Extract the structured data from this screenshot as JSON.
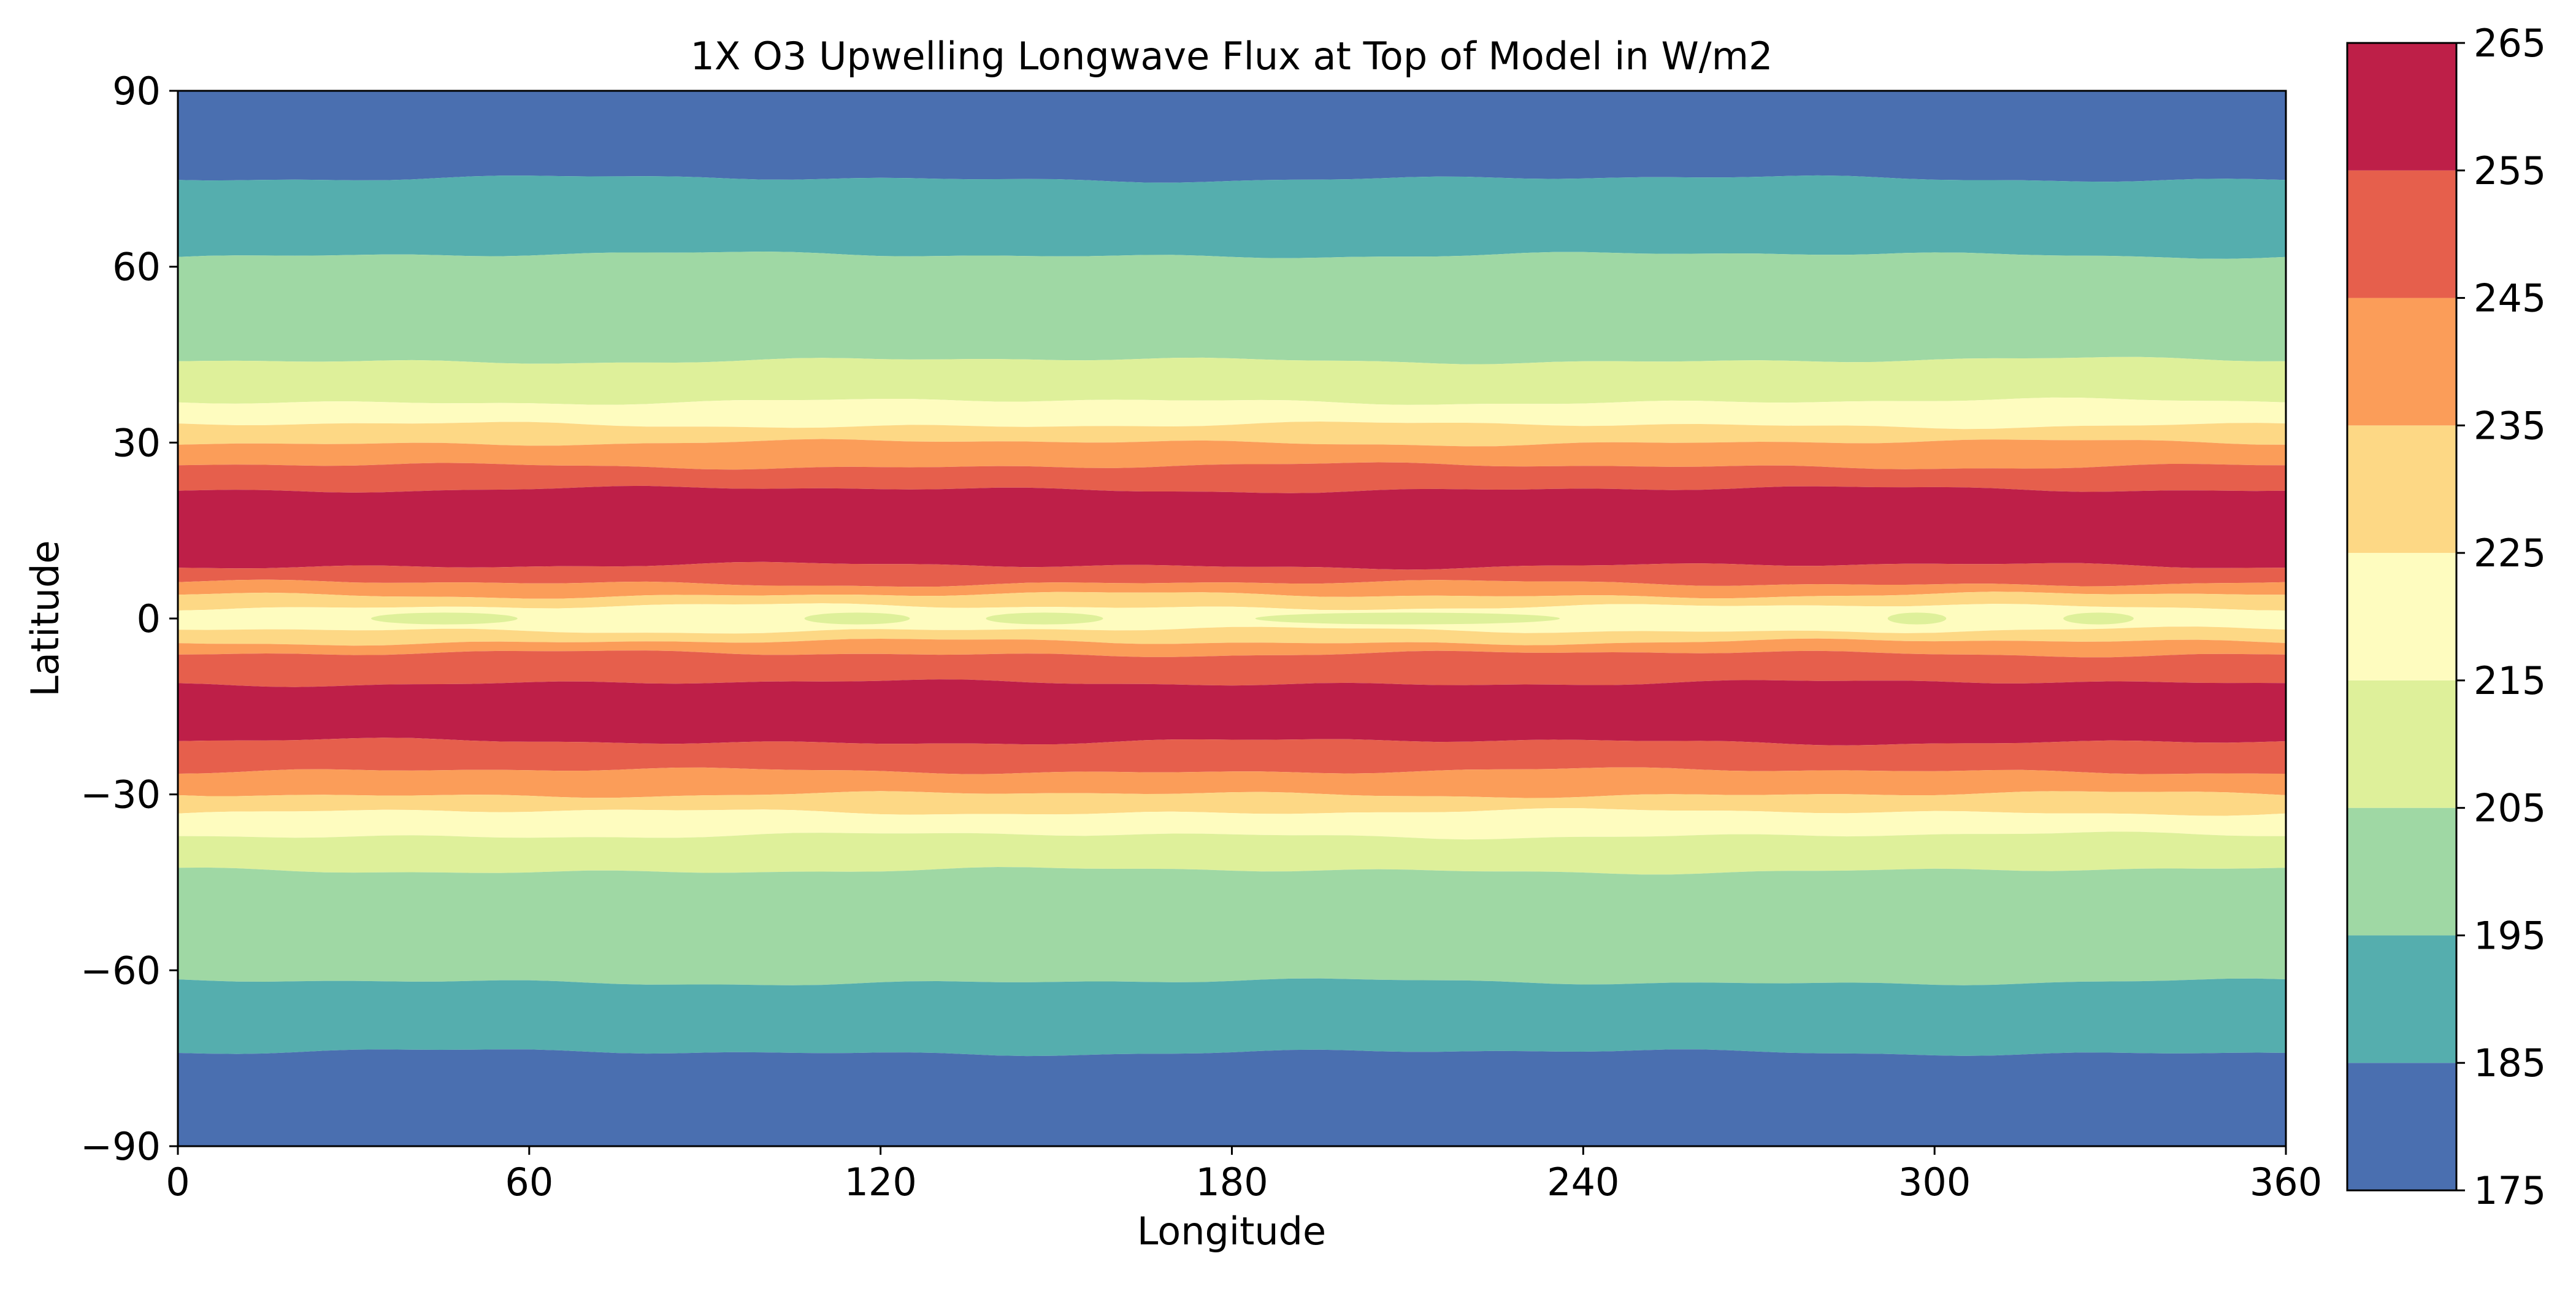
{
  "chart_data": {
    "type": "heatmap",
    "title": "1X O3 Upwelling Longwave Flux at Top of Model in W/m2",
    "xlabel": "Longitude",
    "ylabel": "Latitude",
    "xlim": [
      0,
      360
    ],
    "ylim": [
      -90,
      90
    ],
    "x_ticks": [
      0,
      60,
      120,
      180,
      240,
      300,
      360
    ],
    "x_tick_labels": [
      "0",
      "60",
      "120",
      "180",
      "240",
      "300",
      "360"
    ],
    "y_ticks": [
      90,
      60,
      30,
      0,
      -30,
      -60,
      -90
    ],
    "y_tick_labels": [
      "90",
      "60",
      "30",
      "0",
      "−30",
      "−60",
      "−90"
    ],
    "colorbar": {
      "levels": [
        175,
        185,
        195,
        205,
        215,
        225,
        235,
        245,
        255,
        265
      ],
      "tick_labels": [
        "175",
        "185",
        "195",
        "205",
        "215",
        "225",
        "235",
        "245",
        "255",
        "265"
      ],
      "colors": [
        "#4a6fb0",
        "#55aeae",
        "#9fd8a4",
        "#def09a",
        "#fefcbf",
        "#fdd885",
        "#fb9d59",
        "#e65f4c",
        "#be1f48"
      ]
    },
    "zonal_bands": [
      {
        "lat_range": [
          75,
          90
        ],
        "value_range": [
          175,
          185
        ]
      },
      {
        "lat_range": [
          62,
          75
        ],
        "value_range": [
          185,
          195
        ]
      },
      {
        "lat_range": [
          44,
          62
        ],
        "value_range": [
          195,
          205
        ]
      },
      {
        "lat_range": [
          37,
          44
        ],
        "value_range": [
          205,
          215
        ]
      },
      {
        "lat_range": [
          33,
          37
        ],
        "value_range": [
          215,
          225
        ]
      },
      {
        "lat_range": [
          30,
          33
        ],
        "value_range": [
          225,
          235
        ]
      },
      {
        "lat_range": [
          26,
          30
        ],
        "value_range": [
          235,
          245
        ]
      },
      {
        "lat_range": [
          22,
          26
        ],
        "value_range": [
          245,
          255
        ]
      },
      {
        "lat_range": [
          9,
          22
        ],
        "value_range": [
          255,
          265
        ]
      },
      {
        "lat_range": [
          6,
          9
        ],
        "value_range": [
          245,
          255
        ]
      },
      {
        "lat_range": [
          4,
          6
        ],
        "value_range": [
          235,
          245
        ]
      },
      {
        "lat_range": [
          2,
          4
        ],
        "value_range": [
          225,
          235
        ]
      },
      {
        "lat_range": [
          -2,
          2
        ],
        "value_range": [
          215,
          225
        ]
      },
      {
        "lat_range": [
          -4,
          -2
        ],
        "value_range": [
          225,
          235
        ]
      },
      {
        "lat_range": [
          -6,
          -4
        ],
        "value_range": [
          235,
          245
        ]
      },
      {
        "lat_range": [
          -11,
          -6
        ],
        "value_range": [
          245,
          255
        ]
      },
      {
        "lat_range": [
          -21,
          -11
        ],
        "value_range": [
          255,
          265
        ]
      },
      {
        "lat_range": [
          -26,
          -21
        ],
        "value_range": [
          245,
          255
        ]
      },
      {
        "lat_range": [
          -30,
          -26
        ],
        "value_range": [
          235,
          245
        ]
      },
      {
        "lat_range": [
          -33,
          -30
        ],
        "value_range": [
          225,
          235
        ]
      },
      {
        "lat_range": [
          -37,
          -33
        ],
        "value_range": [
          215,
          225
        ]
      },
      {
        "lat_range": [
          -43,
          -37
        ],
        "value_range": [
          205,
          215
        ]
      },
      {
        "lat_range": [
          -62,
          -43
        ],
        "value_range": [
          195,
          205
        ]
      },
      {
        "lat_range": [
          -74,
          -62
        ],
        "value_range": [
          185,
          195
        ]
      },
      {
        "lat_range": [
          -90,
          -74
        ],
        "value_range": [
          175,
          185
        ]
      }
    ],
    "equatorial_patches": [
      {
        "lon_range": [
          33,
          58
        ],
        "lat_range": [
          -1,
          1
        ],
        "value_range": [
          205,
          215
        ]
      },
      {
        "lon_range": [
          107,
          125
        ],
        "lat_range": [
          -1,
          1
        ],
        "value_range": [
          205,
          215
        ]
      },
      {
        "lon_range": [
          138,
          158
        ],
        "lat_range": [
          -1,
          1
        ],
        "value_range": [
          205,
          215
        ]
      },
      {
        "lon_range": [
          184,
          236
        ],
        "lat_range": [
          -1,
          1
        ],
        "value_range": [
          205,
          215
        ]
      },
      {
        "lon_range": [
          292,
          302
        ],
        "lat_range": [
          -1,
          1
        ],
        "value_range": [
          205,
          215
        ]
      },
      {
        "lon_range": [
          322,
          334
        ],
        "lat_range": [
          -1,
          1
        ],
        "value_range": [
          205,
          215
        ]
      }
    ]
  }
}
